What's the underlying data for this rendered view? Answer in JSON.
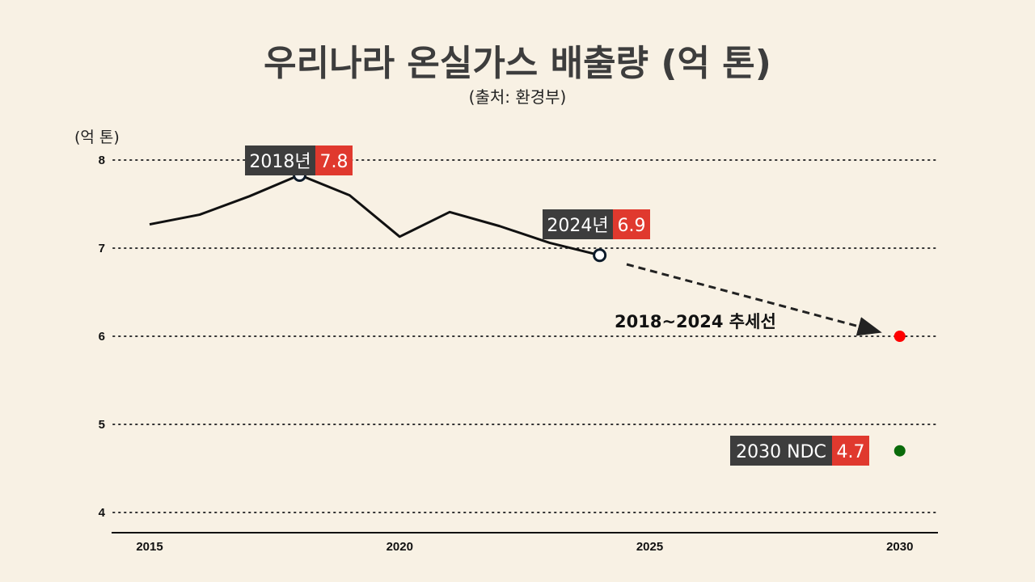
{
  "chart_data": {
    "type": "line",
    "title": "우리나라 온실가스 배출량 (억 톤)",
    "subtitle": "(출처: 환경부)",
    "ylabel": "(억 톤)",
    "xlim": [
      2015,
      2030
    ],
    "ylim": [
      4,
      8
    ],
    "x_ticks": [
      "2015",
      "2020",
      "2025",
      "2030"
    ],
    "y_ticks": [
      "4",
      "5",
      "6",
      "7",
      "8"
    ],
    "grid": "horizontal-dotted",
    "series": [
      {
        "x": [
          2015,
          2016,
          2017,
          2018,
          2019,
          2020,
          2021,
          2022,
          2023,
          2024
        ],
        "values": [
          7.27,
          7.38,
          7.59,
          7.83,
          7.6,
          7.13,
          7.41,
          7.25,
          7.06,
          6.92
        ],
        "color": "#111111"
      }
    ],
    "annotations": [
      {
        "x": 2018,
        "y": 7.83,
        "label": "2018년",
        "value": "7.8"
      },
      {
        "x": 2024,
        "y": 6.92,
        "label": "2024년",
        "value": "6.9"
      },
      {
        "x": 2030,
        "y": 4.7,
        "label": "2030 NDC",
        "value": "4.7",
        "color": "#0a6b0a"
      }
    ],
    "trend": {
      "label": "2018~2024 추세선",
      "from": [
        2024.5,
        6.8
      ],
      "to": [
        2030,
        6.0
      ],
      "end_color": "#ff0000"
    },
    "colors": {
      "label_bg": "#3d3d3d",
      "value_bg": "#e0392e",
      "background": "#f8f1e4"
    }
  }
}
